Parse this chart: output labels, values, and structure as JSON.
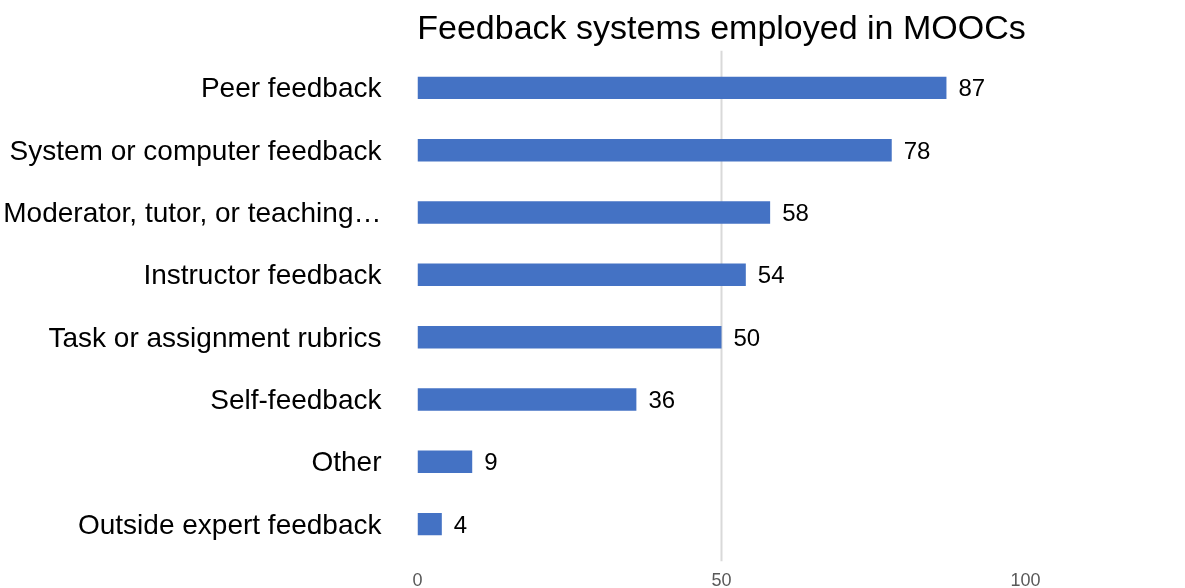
{
  "chart_data": {
    "type": "bar",
    "orientation": "horizontal",
    "title": "Feedback systems employed in MOOCs",
    "categories": [
      "Peer feedback",
      "System or computer feedback",
      "Moderator, tutor, or teaching…",
      "Instructor feedback",
      "Task or assignment rubrics",
      "Self-feedback",
      "Other",
      "Outside expert feedback"
    ],
    "values": [
      87,
      78,
      58,
      54,
      50,
      36,
      9,
      4
    ],
    "color": "#4472c4",
    "xlim": [
      0,
      100
    ],
    "xticks": [
      0,
      50,
      100
    ],
    "grid": "x",
    "data_labels": true
  }
}
